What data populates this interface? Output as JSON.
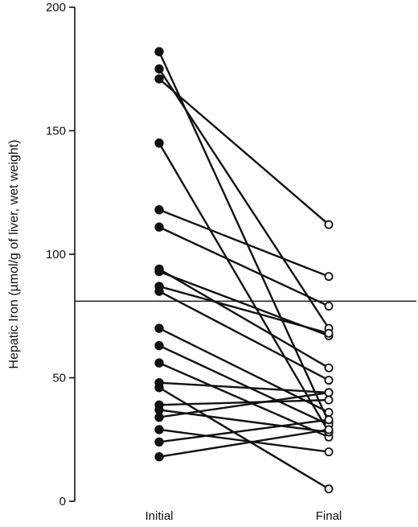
{
  "chart_data": {
    "type": "line",
    "categories": [
      "Initial",
      "Final"
    ],
    "ylabel": "Hepatic Iron (µmol/g of liver, wet weight)",
    "ylim": [
      0,
      200
    ],
    "yticks": [
      0,
      50,
      100,
      150,
      200
    ],
    "reference_line": 81,
    "marker_initial": "filled-circle",
    "marker_final": "open-circle",
    "colors": {
      "line": "#111111",
      "background": "#ffffff"
    },
    "pairs": [
      {
        "initial": 182,
        "final": 32
      },
      {
        "initial": 175,
        "final": 70
      },
      {
        "initial": 171,
        "final": 112
      },
      {
        "initial": 145,
        "final": 28
      },
      {
        "initial": 118,
        "final": 91
      },
      {
        "initial": 111,
        "final": 79
      },
      {
        "initial": 94,
        "final": 54
      },
      {
        "initial": 93,
        "final": 67
      },
      {
        "initial": 87,
        "final": 68
      },
      {
        "initial": 85,
        "final": 49
      },
      {
        "initial": 70,
        "final": 36
      },
      {
        "initial": 63,
        "final": 31
      },
      {
        "initial": 56,
        "final": 26
      },
      {
        "initial": 48,
        "final": 44
      },
      {
        "initial": 46,
        "final": 5
      },
      {
        "initial": 39,
        "final": 41
      },
      {
        "initial": 37,
        "final": 28
      },
      {
        "initial": 34,
        "final": 44
      },
      {
        "initial": 29,
        "final": 20
      },
      {
        "initial": 24,
        "final": 33
      },
      {
        "initial": 18,
        "final": 29
      }
    ]
  }
}
